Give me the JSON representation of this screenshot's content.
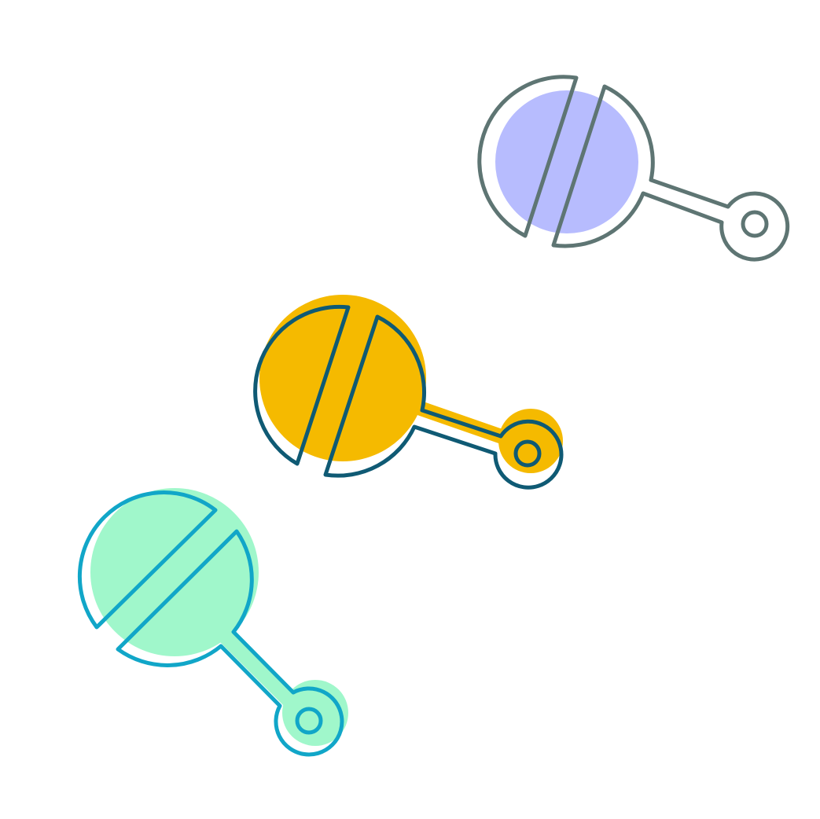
{
  "illustration": {
    "items": [
      {
        "icon": "rattle-icon",
        "fill_color": "#B7BCFE",
        "outline_color": "#5E7573"
      },
      {
        "icon": "rattle-icon",
        "fill_color": "#F5BA00",
        "outline_color": "#0F5A74"
      },
      {
        "icon": "rattle-icon",
        "fill_color": "#A0F7CB",
        "outline_color": "#11A6C8"
      }
    ]
  }
}
